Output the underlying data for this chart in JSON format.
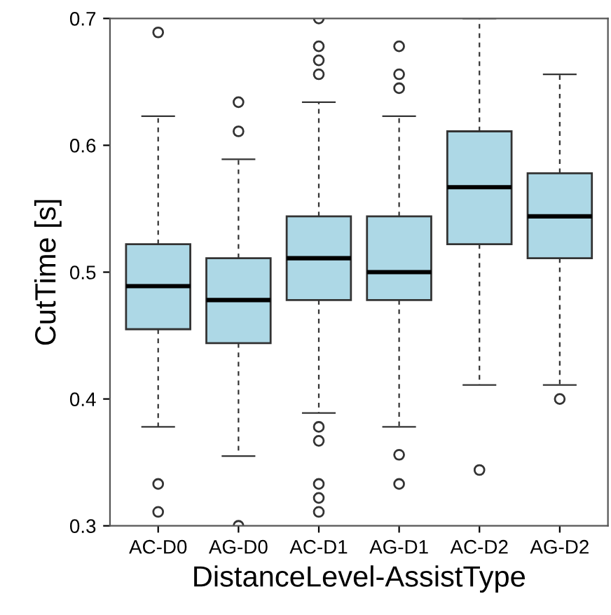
{
  "chart_data": {
    "type": "box",
    "xlabel": "DistanceLevel-AssistType",
    "ylabel": "CutTime [s]",
    "categories": [
      "AC-D0",
      "AG-D0",
      "AC-D1",
      "AG-D1",
      "AC-D2",
      "AG-D2"
    ],
    "color": "#add8e6",
    "boxes": [
      {
        "low": 0.378,
        "q1": 0.455,
        "median": 0.489,
        "q3": 0.522,
        "high": 0.623,
        "outliers": [
          0.689,
          0.333,
          0.311
        ]
      },
      {
        "low": 0.355,
        "q1": 0.444,
        "median": 0.478,
        "q3": 0.511,
        "high": 0.589,
        "outliers": [
          0.634,
          0.611,
          0.3
        ]
      },
      {
        "low": 0.389,
        "q1": 0.478,
        "median": 0.511,
        "q3": 0.544,
        "high": 0.634,
        "outliers": [
          0.7,
          0.678,
          0.667,
          0.656,
          0.378,
          0.367,
          0.333,
          0.322,
          0.311
        ]
      },
      {
        "low": 0.378,
        "q1": 0.478,
        "median": 0.5,
        "q3": 0.544,
        "high": 0.623,
        "outliers": [
          0.678,
          0.656,
          0.645,
          0.356,
          0.333
        ]
      },
      {
        "low": 0.411,
        "q1": 0.522,
        "median": 0.567,
        "q3": 0.611,
        "high": 0.7,
        "outliers": [
          0.344
        ]
      },
      {
        "low": 0.411,
        "q1": 0.511,
        "median": 0.544,
        "q3": 0.578,
        "high": 0.656,
        "outliers": [
          0.4
        ]
      }
    ],
    "ylim": [
      0.3,
      0.7
    ],
    "yticks": [
      0.3,
      0.4,
      0.5,
      0.6,
      0.7
    ],
    "grid": false
  }
}
